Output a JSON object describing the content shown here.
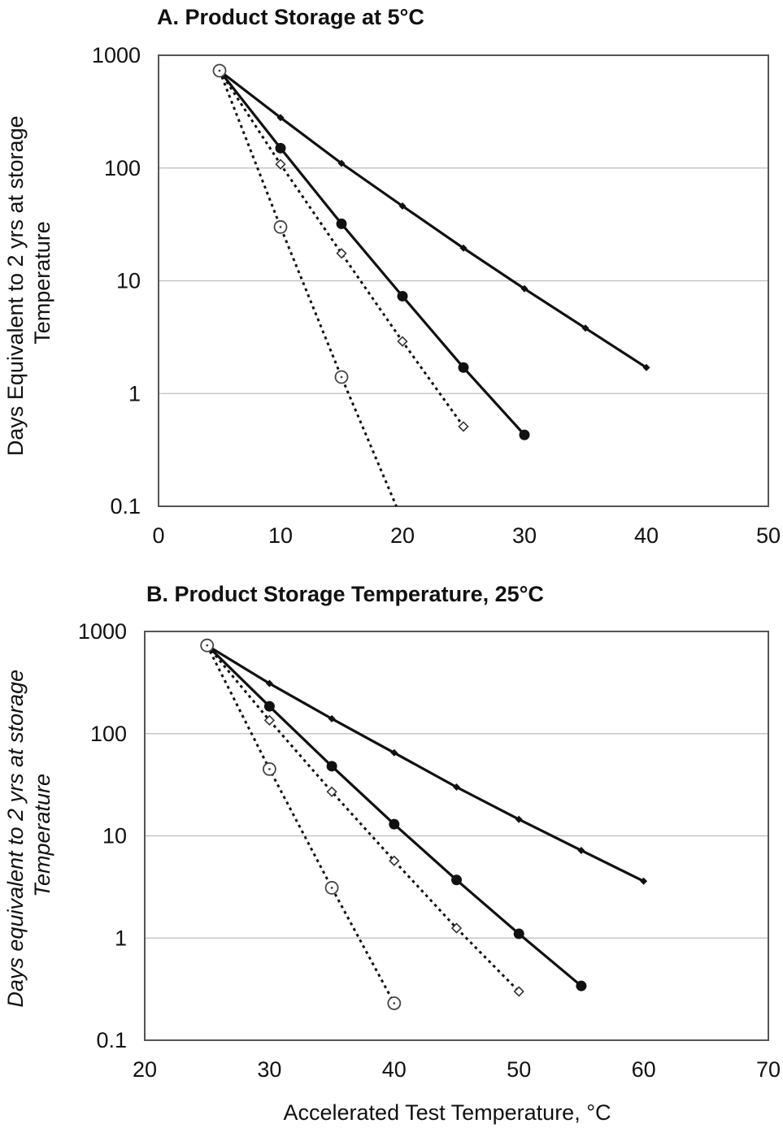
{
  "chart_data": [
    {
      "type": "line",
      "title": "A. Product Storage at 5°C",
      "xlabel": "",
      "ylabel": "Days Equivalent to 2 yrs at storage Temperature",
      "ylabel_lines": [
        "Days Equivalent to 2 yrs at storage",
        "Temperature"
      ],
      "yscale": "log",
      "xlim": [
        0,
        50
      ],
      "ylim": [
        0.1,
        1000
      ],
      "x_ticks": [
        "0",
        "10",
        "20",
        "30",
        "40",
        "50"
      ],
      "y_ticks": [
        "0.1",
        "1",
        "10",
        "100",
        "1000"
      ],
      "grid": "horizontal",
      "series": [
        {
          "line_style": "solid",
          "marker": "small-diamond",
          "x": [
            5,
            10,
            15,
            20,
            25,
            30,
            35,
            40
          ],
          "y": [
            730,
            280,
            110,
            46,
            19.5,
            8.5,
            3.8,
            1.7
          ]
        },
        {
          "line_style": "solid",
          "marker": "filled-circle",
          "x": [
            5,
            10,
            15,
            20,
            25,
            30
          ],
          "y": [
            730,
            150,
            32,
            7.3,
            1.7,
            0.43
          ]
        },
        {
          "line_style": "dotted",
          "marker": "open-diamond",
          "x": [
            5,
            10,
            15,
            20,
            25
          ],
          "y": [
            730,
            108,
            17.5,
            2.9,
            0.51
          ]
        },
        {
          "line_style": "dotted",
          "marker": "open-circle",
          "x": [
            5,
            10,
            15,
            19.5
          ],
          "y": [
            730,
            30,
            1.4,
            0.1
          ]
        }
      ]
    },
    {
      "type": "line",
      "title": "B. Product Storage Temperature, 25°C",
      "xlabel": "Accelerated Test Temperature, °C",
      "ylabel": "Days equivalent to 2 yrs at storage Temperature",
      "ylabel_lines": [
        "Days equivalent to 2 yrs at storage",
        "Temperature"
      ],
      "yscale": "log",
      "xlim": [
        20,
        70
      ],
      "ylim": [
        0.1,
        1000
      ],
      "x_ticks": [
        "20",
        "30",
        "40",
        "50",
        "60",
        "70"
      ],
      "y_ticks": [
        "0.1",
        "1",
        "10",
        "100",
        "1000"
      ],
      "grid": "horizontal",
      "series": [
        {
          "line_style": "solid",
          "marker": "small-diamond",
          "x": [
            25,
            30,
            35,
            40,
            45,
            50,
            55,
            60
          ],
          "y": [
            730,
            310,
            140,
            65,
            30,
            14.5,
            7.2,
            3.6
          ]
        },
        {
          "line_style": "solid",
          "marker": "filled-circle",
          "x": [
            25,
            30,
            35,
            40,
            45,
            50,
            55
          ],
          "y": [
            730,
            185,
            48,
            13,
            3.7,
            1.1,
            0.34
          ]
        },
        {
          "line_style": "dotted",
          "marker": "open-diamond",
          "x": [
            25,
            30,
            35,
            40,
            45,
            50
          ],
          "y": [
            730,
            135,
            27,
            5.7,
            1.25,
            0.3
          ]
        },
        {
          "line_style": "dotted",
          "marker": "open-circle",
          "x": [
            25,
            30,
            35,
            40
          ],
          "y": [
            730,
            45,
            3.1,
            0.23
          ]
        }
      ]
    }
  ]
}
